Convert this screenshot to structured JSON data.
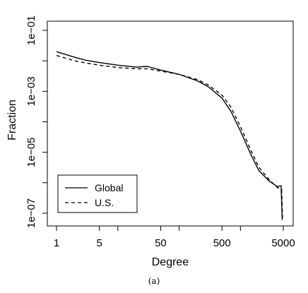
{
  "chart_data": {
    "type": "line",
    "title": "",
    "xlabel": "Degree",
    "ylabel": "Fraction",
    "caption": "(a)",
    "x_scale": "log",
    "y_scale": "log",
    "xlim": [
      1,
      5000
    ],
    "ylim": [
      1e-07,
      0.1
    ],
    "x_ticks": [
      {
        "value": 1,
        "label": "1"
      },
      {
        "value": 5,
        "label": "5"
      },
      {
        "value": 10,
        "label": ""
      },
      {
        "value": 50,
        "label": "50"
      },
      {
        "value": 100,
        "label": ""
      },
      {
        "value": 500,
        "label": "500"
      },
      {
        "value": 1000,
        "label": ""
      },
      {
        "value": 5000,
        "label": "5000"
      }
    ],
    "y_ticks": [
      {
        "value": 1e-07,
        "label": "1e−07"
      },
      {
        "value": 1e-06,
        "label": ""
      },
      {
        "value": 1e-05,
        "label": "1e−05"
      },
      {
        "value": 0.0001,
        "label": ""
      },
      {
        "value": 0.001,
        "label": "1e−03"
      },
      {
        "value": 0.01,
        "label": ""
      },
      {
        "value": 0.1,
        "label": "1e−01"
      }
    ],
    "grid": false,
    "legend_position": "bottom-left",
    "series": [
      {
        "name": "Global",
        "style": "solid",
        "points": [
          [
            1,
            0.02
          ],
          [
            2,
            0.013
          ],
          [
            3,
            0.0105
          ],
          [
            5,
            0.0088
          ],
          [
            10,
            0.0072
          ],
          [
            20,
            0.0062
          ],
          [
            30,
            0.0066
          ],
          [
            50,
            0.005
          ],
          [
            100,
            0.0036
          ],
          [
            200,
            0.0022
          ],
          [
            300,
            0.0014
          ],
          [
            500,
            0.0006
          ],
          [
            700,
            0.00022
          ],
          [
            1000,
            5e-05
          ],
          [
            1500,
            8e-06
          ],
          [
            2000,
            2.5e-06
          ],
          [
            3000,
            1.1e-06
          ],
          [
            4000,
            7.5e-07
          ],
          [
            4600,
            8e-07
          ],
          [
            4800,
            6e-08
          ]
        ]
      },
      {
        "name": "U.S.",
        "style": "dashed",
        "points": [
          [
            1,
            0.015
          ],
          [
            2,
            0.01
          ],
          [
            3,
            0.0085
          ],
          [
            5,
            0.0072
          ],
          [
            10,
            0.006
          ],
          [
            20,
            0.0055
          ],
          [
            30,
            0.0055
          ],
          [
            50,
            0.0046
          ],
          [
            100,
            0.0036
          ],
          [
            200,
            0.0024
          ],
          [
            300,
            0.0016
          ],
          [
            500,
            0.00075
          ],
          [
            700,
            0.0003
          ],
          [
            1000,
            7e-05
          ],
          [
            1500,
            1.1e-05
          ],
          [
            2000,
            3.2e-06
          ],
          [
            3000,
            1.2e-06
          ],
          [
            4000,
            7e-07
          ],
          [
            4700,
            6e-07
          ],
          [
            4850,
            7e-08
          ]
        ]
      }
    ]
  },
  "style": {
    "line_color": "#000000",
    "background": "#ffffff"
  }
}
